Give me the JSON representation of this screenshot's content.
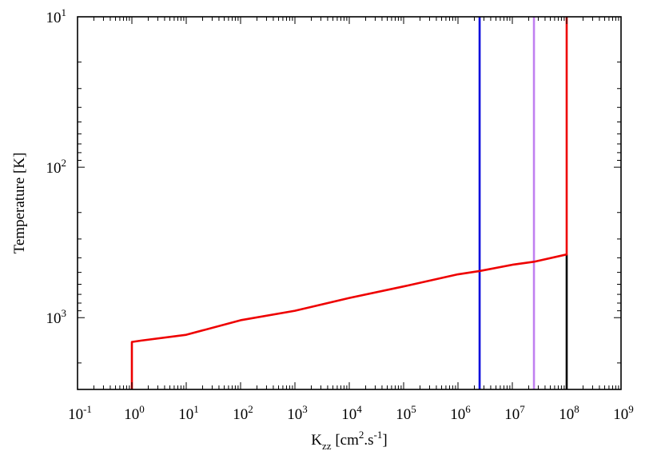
{
  "chart_data": {
    "type": "line",
    "title": "",
    "xlabel": {
      "base": "K",
      "sub": "zz",
      "unit_pre": " [cm",
      "sup1": "2",
      "unit_mid": ".s",
      "sup2": "-1",
      "unit_post": "]"
    },
    "ylabel": "Temperature [K]",
    "xscale": "log",
    "yscale": "log",
    "y_inverted": true,
    "xlim": [
      0.1,
      1000000000
    ],
    "ylim": [
      3000,
      10
    ],
    "x_ticks": [
      {
        "base": "10",
        "exp": "-1",
        "value": 0.1
      },
      {
        "base": "10",
        "exp": "0",
        "value": 1
      },
      {
        "base": "10",
        "exp": "1",
        "value": 10
      },
      {
        "base": "10",
        "exp": "2",
        "value": 100
      },
      {
        "base": "10",
        "exp": "3",
        "value": 1000
      },
      {
        "base": "10",
        "exp": "4",
        "value": 10000
      },
      {
        "base": "10",
        "exp": "5",
        "value": 100000
      },
      {
        "base": "10",
        "exp": "6",
        "value": 1000000
      },
      {
        "base": "10",
        "exp": "7",
        "value": 10000000
      },
      {
        "base": "10",
        "exp": "8",
        "value": 100000000
      },
      {
        "base": "10",
        "exp": "9",
        "value": 1000000000
      }
    ],
    "y_ticks": [
      {
        "base": "10",
        "exp": "1",
        "value": 10
      },
      {
        "base": "10",
        "exp": "2",
        "value": 100
      },
      {
        "base": "10",
        "exp": "3",
        "value": 1000
      }
    ],
    "grid": false,
    "legend": "none",
    "series": [
      {
        "color": "#0000dd",
        "points": [
          [
            2500000,
            10
          ],
          [
            2500000,
            3000
          ]
        ]
      },
      {
        "color": "#c080f0",
        "points": [
          [
            25000000,
            10
          ],
          [
            25000000,
            3000
          ]
        ]
      },
      {
        "color": "#000000",
        "points": [
          [
            100000000,
            380
          ],
          [
            100000000,
            3000
          ]
        ]
      },
      {
        "color": "#ee0000",
        "points": [
          [
            1,
            3000
          ],
          [
            1,
            1450
          ],
          [
            1.5,
            1420
          ],
          [
            10,
            1300
          ],
          [
            100,
            1040
          ],
          [
            1000,
            900
          ],
          [
            10000,
            740
          ],
          [
            100000,
            620
          ],
          [
            1000000,
            515
          ],
          [
            2500000,
            490
          ],
          [
            10000000,
            445
          ],
          [
            25000000,
            425
          ],
          [
            100000000,
            380
          ],
          [
            100000000,
            10
          ]
        ]
      }
    ]
  }
}
